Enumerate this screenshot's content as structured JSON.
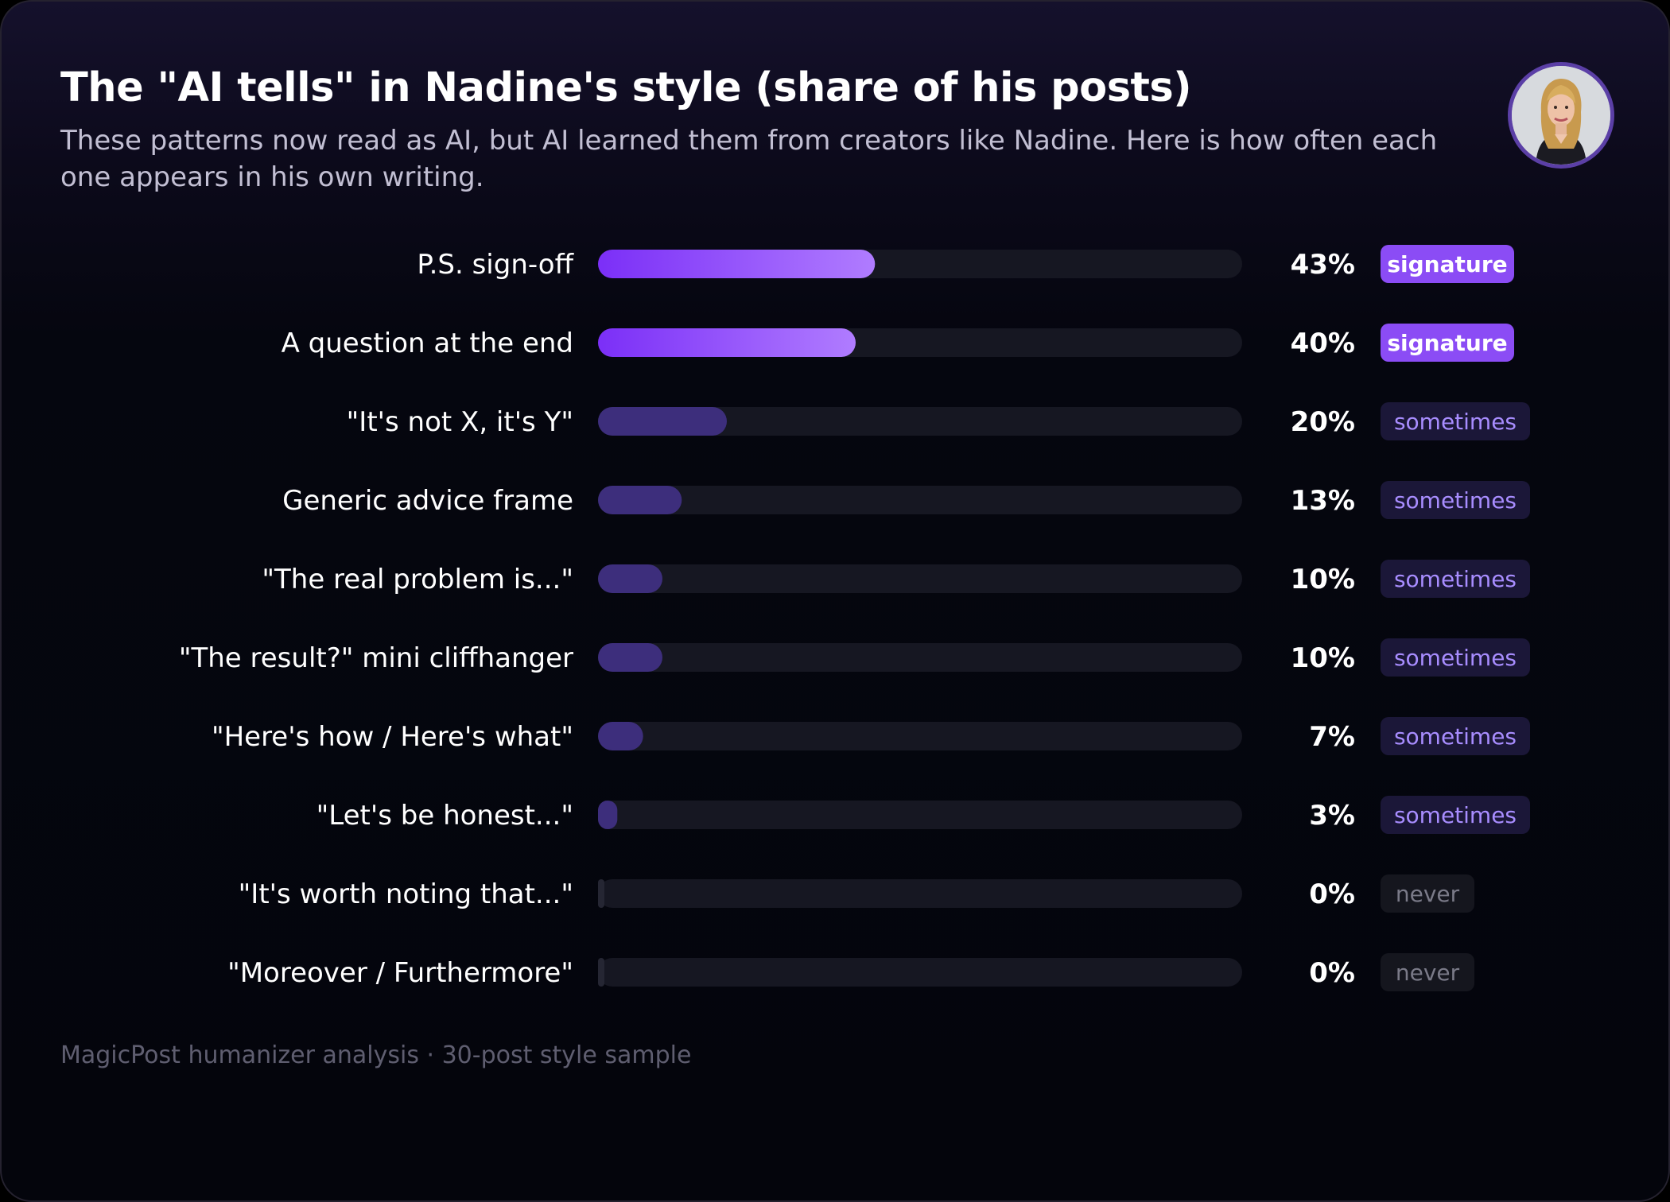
{
  "header": {
    "title": "The \"AI tells\" in Nadine's style (share of his posts)",
    "subtitle": "These patterns now read as AI, but AI learned them from creators like Nadine. Here is how often each one appears in his own writing."
  },
  "avatar": {
    "icon": "profile-photo"
  },
  "footer": {
    "note": "MagicPost humanizer analysis · 30-post style sample"
  },
  "colors": {
    "signature_bar_start": "#7b2ff7",
    "signature_bar_end": "#b07cff",
    "sometimes_bar": "#3d2e7c",
    "track": "#161722",
    "signature_badge": "#8b4cf5",
    "sometimes_badge_bg": "#1b1738",
    "sometimes_badge_text": "#a88dff",
    "never_badge_bg": "#15161e",
    "never_badge_text": "#7a7a88"
  },
  "chart_data": {
    "type": "bar",
    "orientation": "horizontal",
    "xlim": [
      0,
      100
    ],
    "categories": [
      "P.S. sign-off",
      "A question at the end",
      "\"It's not X, it's Y\"",
      "Generic advice frame",
      "\"The real problem is...\"",
      "\"The result?\" mini cliffhanger",
      "\"Here's how / Here's what\"",
      "\"Let's be honest...\"",
      "\"It's worth noting that...\"",
      "\"Moreover / Furthermore\""
    ],
    "values": [
      43,
      40,
      20,
      13,
      10,
      10,
      7,
      3,
      0,
      0
    ],
    "value_labels": [
      "43%",
      "40%",
      "20%",
      "13%",
      "10%",
      "10%",
      "7%",
      "3%",
      "0%",
      "0%"
    ],
    "badges": [
      "signature",
      "signature",
      "sometimes",
      "sometimes",
      "sometimes",
      "sometimes",
      "sometimes",
      "sometimes",
      "never",
      "never"
    ]
  }
}
